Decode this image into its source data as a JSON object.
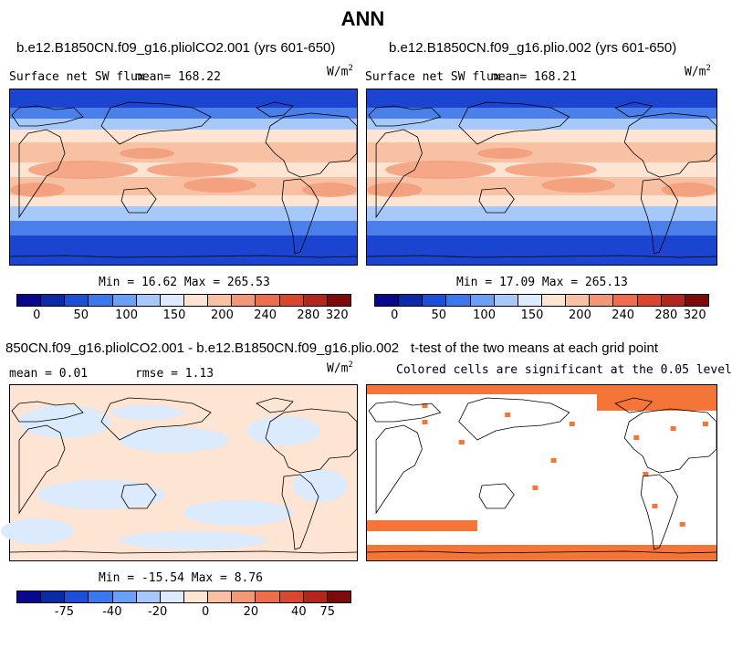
{
  "main_title": "ANN",
  "panels": [
    {
      "title": "b.e12.B1850CN.f09_g16.pliolCO2.001 (yrs 601-650)",
      "left_label": "Surface net SW flux",
      "mean_text": "mean= 168.22",
      "units": "W/m",
      "units_sup": "2",
      "minmax": "Min =  16.62 Max = 265.53"
    },
    {
      "title": "b.e12.B1850CN.f09_g16.plio.002 (yrs 601-650)",
      "left_label": "Surface net SW flux",
      "mean_text": "mean= 168.21",
      "units": "W/m",
      "units_sup": "2",
      "minmax": "Min =  17.09 Max = 265.13"
    },
    {
      "title": "850CN.f09_g16.pliolCO2.001 - b.e12.B1850CN.f09_g16.plio.002",
      "mean_text": "mean =   0.01",
      "rmse_text": "rmse =   1.13",
      "units": "W/m",
      "units_sup": "2",
      "minmax": "Min = -15.54 Max =   8.76"
    },
    {
      "title": "t-test of the two means at each grid point",
      "subtitle": "Colored cells are significant at the 0.05 level"
    }
  ],
  "chart_data": [
    {
      "type": "heatmap",
      "title": "b.e12.B1850CN.f09_g16.pliolCO2.001 (yrs 601-650)",
      "variable": "Surface net SW flux",
      "units": "W/m^2",
      "mean": 168.22,
      "min": 16.62,
      "max": 265.53,
      "colorbar_ticks": [
        "0",
        "50",
        "100",
        "150",
        "200",
        "240",
        "280",
        "320"
      ]
    },
    {
      "type": "heatmap",
      "title": "b.e12.B1850CN.f09_g16.plio.002 (yrs 601-650)",
      "variable": "Surface net SW flux",
      "units": "W/m^2",
      "mean": 168.21,
      "min": 17.09,
      "max": 265.13,
      "colorbar_ticks": [
        "0",
        "50",
        "100",
        "150",
        "200",
        "240",
        "280",
        "320"
      ]
    },
    {
      "type": "heatmap",
      "title": "850CN.f09_g16.pliolCO2.001 - b.e12.B1850CN.f09_g16.plio.002",
      "units": "W/m^2",
      "mean": 0.01,
      "rmse": 1.13,
      "min": -15.54,
      "max": 8.76,
      "colorbar_ticks": [
        "-75",
        "-40",
        "-20",
        "0",
        "20",
        "40",
        "75"
      ]
    },
    {
      "type": "heatmap",
      "title": "t-test of the two means at each grid point",
      "subtitle": "Colored cells are significant at the 0.05 level"
    }
  ],
  "colorbar_abs": {
    "colors": [
      "#08088c",
      "#0b2aa8",
      "#1a4fd6",
      "#3a78ee",
      "#6aa0f6",
      "#a6c9f9",
      "#dbeafc",
      "#fde4d3",
      "#f8c1a4",
      "#f39876",
      "#ec6e4c",
      "#d9472e",
      "#b3261c",
      "#7f0a0a"
    ],
    "ticks": [
      "0",
      "50",
      "100",
      "150",
      "200",
      "240",
      "280",
      "320"
    ]
  },
  "colorbar_diff": {
    "colors": [
      "#08088c",
      "#0b2aa8",
      "#1a4fd6",
      "#3a78ee",
      "#6aa0f6",
      "#a6c9f9",
      "#dbeafc",
      "#fde4d3",
      "#f8c1a4",
      "#f39876",
      "#ec6e4c",
      "#d9472e",
      "#b3261c",
      "#7f0a0a"
    ],
    "ticks": [
      "-75",
      "-40",
      "-20",
      "0",
      "20",
      "40",
      "75"
    ]
  },
  "map_colors": {
    "ocean_deep": "#1b45d0",
    "ocean_mid": "#4a7ee8",
    "ocean_light": "#a6c9f9",
    "warm_light": "#fde4d3",
    "warm_mid": "#f8c1a4",
    "warm_strong": "#f39876",
    "diff_pos": "#fde4d3",
    "diff_neg": "#dbeafc",
    "sig": "#f57539"
  }
}
